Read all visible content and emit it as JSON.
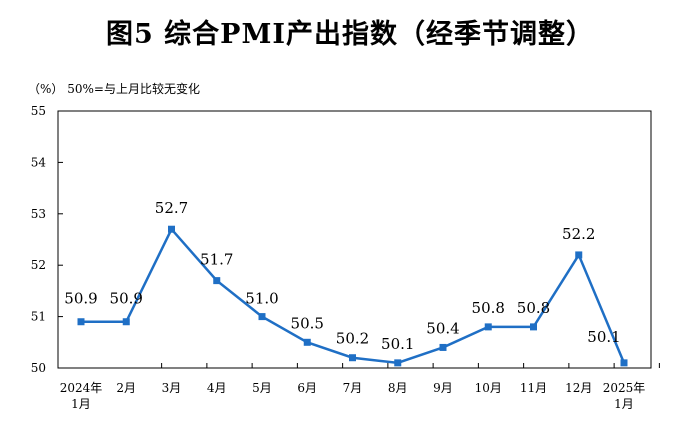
{
  "chart_data": {
    "type": "line",
    "title": "图5  综合PMI产出指数（经季节调整）",
    "unit_note": "（%）  50%=与上月比较无变化",
    "series_color": "#1f6fc5",
    "categories": [
      [
        "2024年",
        "1月"
      ],
      [
        "2月"
      ],
      [
        "3月"
      ],
      [
        "4月"
      ],
      [
        "5月"
      ],
      [
        "6月"
      ],
      [
        "7月"
      ],
      [
        "8月"
      ],
      [
        "9月"
      ],
      [
        "10月"
      ],
      [
        "11月"
      ],
      [
        "12月"
      ],
      [
        "2025年",
        "1月"
      ]
    ],
    "values": [
      50.9,
      50.9,
      52.7,
      51.7,
      51.0,
      50.5,
      50.2,
      50.1,
      50.4,
      50.8,
      50.8,
      52.2,
      50.1
    ],
    "value_labels": [
      "50.9",
      "50.9",
      "52.7",
      "51.7",
      "51.0",
      "50.5",
      "50.2",
      "50.1",
      "50.4",
      "50.8",
      "50.8",
      "52.2",
      "50.1"
    ],
    "y_ticks": [
      "50",
      "51",
      "52",
      "53",
      "54",
      "55"
    ],
    "ylim": [
      50,
      55
    ],
    "grid": false,
    "legend": "none"
  }
}
